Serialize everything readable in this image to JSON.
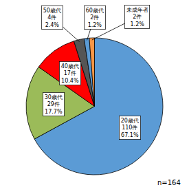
{
  "chart_data": {
    "type": "pie",
    "values": [
      110,
      29,
      17,
      4,
      2,
      2
    ],
    "value_labels": [
      "20歳代\n110件\n67.1%",
      "30歳代\n29件\n17.7%",
      "40歳代\n17件\n10.4%",
      "50歳代\n4件\n2.4%",
      "60歳代\n2件\n1.2%",
      "未成年者\n2件\n1.2%"
    ],
    "colors": [
      "#5B9BD5",
      "#9BBB59",
      "#FF0000",
      "#555555",
      "#5B9BD5",
      "#F79646"
    ],
    "annotations": [
      "n=164"
    ]
  }
}
